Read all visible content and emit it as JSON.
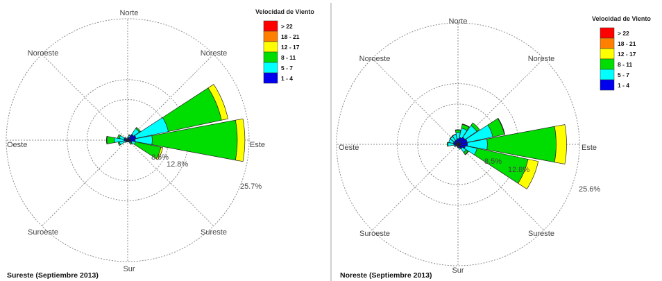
{
  "legend": {
    "title": "Velocidad de Viento",
    "bins": [
      {
        "label": "> 22",
        "color": "#ff0000"
      },
      {
        "label": "18 - 21",
        "color": "#ff8000"
      },
      {
        "label": "12 - 17",
        "color": "#ffff00"
      },
      {
        "label": "8 - 11",
        "color": "#00dd00"
      },
      {
        "label": "5 - 7",
        "color": "#00ffff"
      },
      {
        "label": "1 - 4",
        "color": "#0000ee"
      }
    ]
  },
  "chart_data": [
    {
      "type": "wind-rose",
      "title": "Sureste  (Septiembre 2013)",
      "directions": [
        "Norte",
        "Noreste",
        "Este",
        "Sureste",
        "Sur",
        "Suroeste",
        "Oeste",
        "Noroeste"
      ],
      "ring_labels": [
        "8.6%",
        "12.8%",
        "25.7%"
      ],
      "ring_values": [
        8.6,
        12.8,
        25.7
      ],
      "ring_max": 25.7,
      "sector_angles": [
        0,
        22.5,
        45,
        67.5,
        90,
        112.5,
        135,
        157.5,
        180,
        202.5,
        225,
        247.5,
        270,
        292.5,
        315,
        337.5
      ],
      "series": [
        {
          "name": "1 - 4",
          "values": [
            0.3,
            0.6,
            1.5,
            1.8,
            1.6,
            0.9,
            0.5,
            0.3,
            0.3,
            0.3,
            0.3,
            0.5,
            0.8,
            0.8,
            0.5,
            0.2
          ]
        },
        {
          "name": "5 - 7",
          "values": [
            0.2,
            0.4,
            1.5,
            7.0,
            3.6,
            0.8,
            0.3,
            0.1,
            0.1,
            0.1,
            0.3,
            1.3,
            2.0,
            1.0,
            0.3,
            0.1
          ]
        },
        {
          "name": "8 - 11",
          "values": [
            0.0,
            0.2,
            0.3,
            11.5,
            18.0,
            5.5,
            0.3,
            0.0,
            0.0,
            0.0,
            0.0,
            0.3,
            1.6,
            0.4,
            0.0,
            0.0
          ]
        },
        {
          "name": "12 - 17",
          "values": [
            0.0,
            0.0,
            0.0,
            1.4,
            1.6,
            0.4,
            0.0,
            0.0,
            0.0,
            0.0,
            0.0,
            0.0,
            0.1,
            0.0,
            0.0,
            0.0
          ]
        },
        {
          "name": "18 - 21",
          "values": [
            0,
            0,
            0,
            0,
            0,
            0,
            0,
            0,
            0,
            0,
            0,
            0,
            0,
            0,
            0,
            0
          ]
        },
        {
          "name": "> 22",
          "values": [
            0,
            0,
            0,
            0,
            0,
            0,
            0,
            0,
            0,
            0,
            0,
            0,
            0,
            0,
            0,
            0
          ]
        }
      ]
    },
    {
      "type": "wind-rose",
      "title": "Noreste  (Septiembre 2013)",
      "directions": [
        "Norte",
        "Noreste",
        "Este",
        "Sureste",
        "Sur",
        "Suroeste",
        "Oeste",
        "Noroeste"
      ],
      "ring_labels": [
        "8.5%",
        "12.8%",
        "25.6%"
      ],
      "ring_values": [
        8.5,
        12.8,
        25.6
      ],
      "ring_max": 25.6,
      "sector_angles": [
        0,
        22.5,
        45,
        67.5,
        90,
        112.5,
        135,
        157.5,
        180,
        202.5,
        225,
        247.5,
        270,
        292.5,
        315,
        337.5
      ],
      "series": [
        {
          "name": "1 - 4",
          "values": [
            1.2,
            1.5,
            1.8,
            2.0,
            2.0,
            1.6,
            1.1,
            0.8,
            0.5,
            0.4,
            0.4,
            0.6,
            0.9,
            1.0,
            0.9,
            1.0
          ]
        },
        {
          "name": "5 - 7",
          "values": [
            1.3,
            2.0,
            3.0,
            5.5,
            4.2,
            2.5,
            1.0,
            0.3,
            0.2,
            0.1,
            0.1,
            0.3,
            1.2,
            1.0,
            1.1,
            1.1
          ]
        },
        {
          "name": "8 - 11",
          "values": [
            0.5,
            0.8,
            0.7,
            2.5,
            14.5,
            11.0,
            0.5,
            0.0,
            0.0,
            0.0,
            0.0,
            0.0,
            0.2,
            0.0,
            0.1,
            0.1
          ]
        },
        {
          "name": "12 - 17",
          "values": [
            0.1,
            0.1,
            0.0,
            0.1,
            2.2,
            2.2,
            0.1,
            0.0,
            0.0,
            0.0,
            0.0,
            0.0,
            0.0,
            0.0,
            0.0,
            0.0
          ]
        },
        {
          "name": "18 - 21",
          "values": [
            0,
            0,
            0,
            0,
            0,
            0,
            0,
            0,
            0,
            0,
            0,
            0,
            0,
            0,
            0,
            0
          ]
        },
        {
          "name": "> 22",
          "values": [
            0,
            0,
            0,
            0,
            0,
            0,
            0,
            0,
            0,
            0,
            0,
            0,
            0,
            0,
            0,
            0
          ]
        }
      ]
    }
  ]
}
